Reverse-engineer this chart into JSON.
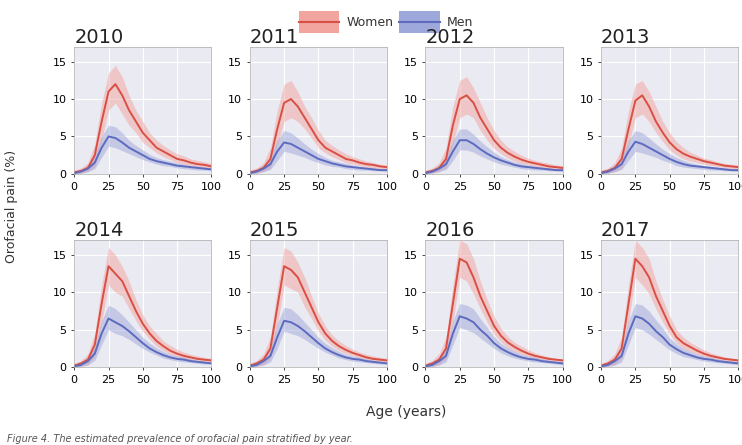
{
  "years": [
    2010,
    2011,
    2012,
    2013,
    2014,
    2015,
    2016,
    2017
  ],
  "age": [
    0,
    5,
    10,
    15,
    20,
    25,
    30,
    35,
    40,
    45,
    50,
    55,
    60,
    65,
    70,
    75,
    80,
    85,
    90,
    95,
    100
  ],
  "women_mean": {
    "2010": [
      0.2,
      0.4,
      0.8,
      2.5,
      7.0,
      11.0,
      12.0,
      10.5,
      8.5,
      7.0,
      5.5,
      4.5,
      3.5,
      3.0,
      2.5,
      2.0,
      1.8,
      1.5,
      1.3,
      1.2,
      1.0
    ],
    "2011": [
      0.2,
      0.4,
      0.8,
      2.0,
      6.0,
      9.5,
      10.0,
      9.0,
      7.5,
      6.0,
      4.5,
      3.5,
      3.0,
      2.5,
      2.0,
      1.8,
      1.5,
      1.3,
      1.2,
      1.0,
      0.9
    ],
    "2012": [
      0.2,
      0.4,
      0.8,
      2.0,
      6.5,
      10.0,
      10.5,
      9.5,
      7.5,
      6.0,
      4.5,
      3.5,
      2.8,
      2.3,
      1.9,
      1.6,
      1.4,
      1.2,
      1.0,
      0.9,
      0.8
    ],
    "2013": [
      0.2,
      0.4,
      0.8,
      2.0,
      6.0,
      9.8,
      10.5,
      9.0,
      7.0,
      5.5,
      4.2,
      3.3,
      2.7,
      2.3,
      2.0,
      1.7,
      1.5,
      1.3,
      1.1,
      1.0,
      0.9
    ],
    "2014": [
      0.2,
      0.5,
      1.0,
      3.0,
      8.5,
      13.5,
      12.5,
      11.5,
      9.5,
      7.5,
      5.8,
      4.5,
      3.5,
      2.8,
      2.2,
      1.8,
      1.5,
      1.3,
      1.1,
      1.0,
      0.9
    ],
    "2015": [
      0.2,
      0.5,
      1.0,
      2.5,
      8.0,
      13.5,
      13.0,
      12.0,
      10.0,
      8.0,
      6.0,
      4.5,
      3.5,
      2.8,
      2.3,
      1.9,
      1.6,
      1.3,
      1.1,
      1.0,
      0.9
    ],
    "2016": [
      0.2,
      0.5,
      1.0,
      2.5,
      8.5,
      14.5,
      14.0,
      12.0,
      9.5,
      7.5,
      5.5,
      4.2,
      3.3,
      2.7,
      2.2,
      1.8,
      1.5,
      1.3,
      1.1,
      1.0,
      0.9
    ],
    "2017": [
      0.2,
      0.5,
      1.0,
      2.5,
      8.5,
      14.5,
      13.5,
      12.0,
      9.5,
      7.5,
      5.5,
      4.0,
      3.2,
      2.7,
      2.2,
      1.8,
      1.5,
      1.3,
      1.1,
      1.0,
      0.9
    ]
  },
  "women_upper": {
    "2010": [
      0.5,
      0.8,
      1.5,
      4.0,
      9.5,
      13.5,
      14.5,
      13.0,
      10.5,
      8.5,
      7.0,
      5.5,
      4.5,
      3.8,
      3.2,
      2.7,
      2.4,
      2.0,
      1.8,
      1.6,
      1.4
    ],
    "2011": [
      0.5,
      0.8,
      1.5,
      3.5,
      8.5,
      12.0,
      12.5,
      11.0,
      9.0,
      7.5,
      5.8,
      4.5,
      3.8,
      3.2,
      2.7,
      2.3,
      2.0,
      1.7,
      1.5,
      1.3,
      1.2
    ],
    "2012": [
      0.5,
      0.8,
      1.5,
      3.5,
      9.0,
      12.5,
      13.0,
      11.5,
      9.5,
      7.5,
      5.8,
      4.5,
      3.6,
      3.0,
      2.5,
      2.1,
      1.8,
      1.6,
      1.4,
      1.2,
      1.1
    ],
    "2013": [
      0.5,
      0.8,
      1.5,
      3.5,
      8.5,
      12.0,
      12.5,
      11.0,
      9.0,
      7.0,
      5.5,
      4.3,
      3.5,
      2.9,
      2.5,
      2.1,
      1.9,
      1.6,
      1.4,
      1.3,
      1.2
    ],
    "2014": [
      0.5,
      0.9,
      1.8,
      4.5,
      11.0,
      16.0,
      15.0,
      13.5,
      11.5,
      9.0,
      7.0,
      5.5,
      4.5,
      3.5,
      2.9,
      2.4,
      2.0,
      1.7,
      1.5,
      1.3,
      1.2
    ],
    "2015": [
      0.5,
      0.9,
      1.8,
      4.0,
      10.5,
      16.0,
      15.5,
      14.0,
      12.0,
      9.5,
      7.2,
      5.5,
      4.3,
      3.5,
      2.9,
      2.4,
      2.0,
      1.7,
      1.5,
      1.3,
      1.2
    ],
    "2016": [
      0.5,
      0.9,
      1.8,
      4.0,
      11.0,
      17.0,
      16.5,
      14.5,
      11.5,
      9.0,
      6.8,
      5.2,
      4.1,
      3.3,
      2.8,
      2.3,
      1.9,
      1.6,
      1.4,
      1.2,
      1.1
    ],
    "2017": [
      0.5,
      0.9,
      1.8,
      4.0,
      11.0,
      17.0,
      16.0,
      14.5,
      11.5,
      9.0,
      6.8,
      5.0,
      4.0,
      3.3,
      2.8,
      2.3,
      1.9,
      1.6,
      1.4,
      1.2,
      1.1
    ]
  },
  "women_lower": {
    "2010": [
      0.0,
      0.1,
      0.3,
      1.0,
      4.5,
      8.5,
      9.5,
      8.0,
      6.5,
      5.5,
      4.2,
      3.5,
      2.8,
      2.3,
      1.9,
      1.5,
      1.3,
      1.1,
      0.9,
      0.8,
      0.7
    ],
    "2011": [
      0.0,
      0.1,
      0.3,
      0.8,
      3.8,
      7.0,
      7.5,
      7.0,
      6.0,
      4.8,
      3.5,
      2.8,
      2.3,
      1.9,
      1.5,
      1.3,
      1.1,
      0.9,
      0.8,
      0.7,
      0.6
    ],
    "2012": [
      0.0,
      0.1,
      0.3,
      0.8,
      4.0,
      7.5,
      8.0,
      7.5,
      5.8,
      4.5,
      3.4,
      2.7,
      2.1,
      1.7,
      1.4,
      1.2,
      1.0,
      0.8,
      0.7,
      0.6,
      0.5
    ],
    "2013": [
      0.0,
      0.1,
      0.3,
      0.8,
      3.8,
      7.5,
      8.0,
      7.0,
      5.5,
      4.3,
      3.2,
      2.5,
      2.0,
      1.7,
      1.5,
      1.3,
      1.1,
      1.0,
      0.8,
      0.7,
      0.6
    ],
    "2014": [
      0.0,
      0.1,
      0.3,
      1.5,
      6.0,
      11.0,
      10.0,
      9.5,
      7.8,
      6.2,
      4.8,
      3.7,
      2.8,
      2.2,
      1.7,
      1.4,
      1.1,
      0.9,
      0.8,
      0.7,
      0.6
    ],
    "2015": [
      0.0,
      0.1,
      0.3,
      1.2,
      5.5,
      11.0,
      10.5,
      10.0,
      8.0,
      6.5,
      4.8,
      3.6,
      2.8,
      2.2,
      1.8,
      1.5,
      1.2,
      1.0,
      0.8,
      0.7,
      0.6
    ],
    "2016": [
      0.0,
      0.1,
      0.3,
      1.2,
      6.0,
      12.0,
      11.5,
      9.8,
      7.8,
      6.0,
      4.4,
      3.4,
      2.6,
      2.1,
      1.7,
      1.4,
      1.2,
      1.0,
      0.8,
      0.7,
      0.6
    ],
    "2017": [
      0.0,
      0.1,
      0.3,
      1.2,
      6.0,
      12.0,
      11.0,
      9.8,
      7.8,
      6.0,
      4.4,
      3.2,
      2.5,
      2.1,
      1.7,
      1.4,
      1.2,
      1.0,
      0.8,
      0.7,
      0.6
    ]
  },
  "men_mean": {
    "2010": [
      0.1,
      0.3,
      0.7,
      1.5,
      3.5,
      5.0,
      4.8,
      4.2,
      3.5,
      3.0,
      2.5,
      2.0,
      1.7,
      1.5,
      1.3,
      1.1,
      1.0,
      0.9,
      0.8,
      0.7,
      0.6
    ],
    "2011": [
      0.1,
      0.3,
      0.7,
      1.3,
      3.0,
      4.2,
      4.0,
      3.5,
      3.0,
      2.5,
      2.0,
      1.7,
      1.4,
      1.2,
      1.0,
      0.9,
      0.8,
      0.7,
      0.6,
      0.5,
      0.5
    ],
    "2012": [
      0.1,
      0.3,
      0.7,
      1.3,
      3.0,
      4.5,
      4.5,
      4.0,
      3.3,
      2.7,
      2.2,
      1.8,
      1.5,
      1.2,
      1.0,
      0.9,
      0.8,
      0.7,
      0.6,
      0.5,
      0.5
    ],
    "2013": [
      0.1,
      0.3,
      0.7,
      1.3,
      3.0,
      4.3,
      4.0,
      3.5,
      3.0,
      2.5,
      2.0,
      1.6,
      1.3,
      1.1,
      1.0,
      0.9,
      0.8,
      0.7,
      0.6,
      0.5,
      0.5
    ],
    "2014": [
      0.1,
      0.3,
      0.8,
      1.8,
      4.5,
      6.5,
      6.0,
      5.5,
      4.8,
      4.0,
      3.2,
      2.5,
      2.0,
      1.6,
      1.3,
      1.1,
      1.0,
      0.8,
      0.7,
      0.6,
      0.5
    ],
    "2015": [
      0.1,
      0.3,
      0.8,
      1.5,
      4.0,
      6.2,
      6.0,
      5.5,
      4.8,
      4.0,
      3.2,
      2.5,
      2.0,
      1.6,
      1.3,
      1.1,
      1.0,
      0.8,
      0.7,
      0.6,
      0.5
    ],
    "2016": [
      0.1,
      0.3,
      0.8,
      1.5,
      4.5,
      6.8,
      6.5,
      6.0,
      5.0,
      4.2,
      3.2,
      2.5,
      2.0,
      1.6,
      1.3,
      1.1,
      1.0,
      0.8,
      0.7,
      0.6,
      0.5
    ],
    "2017": [
      0.1,
      0.3,
      0.8,
      1.5,
      4.5,
      6.8,
      6.5,
      5.8,
      4.8,
      4.0,
      3.0,
      2.4,
      1.9,
      1.6,
      1.3,
      1.1,
      1.0,
      0.8,
      0.7,
      0.6,
      0.5
    ]
  },
  "men_upper": {
    "2010": [
      0.3,
      0.6,
      1.2,
      2.5,
      5.0,
      6.5,
      6.3,
      5.5,
      4.5,
      3.8,
      3.2,
      2.6,
      2.2,
      1.9,
      1.7,
      1.5,
      1.3,
      1.1,
      1.0,
      0.9,
      0.8
    ],
    "2011": [
      0.3,
      0.6,
      1.2,
      2.2,
      4.5,
      5.8,
      5.5,
      4.8,
      4.0,
      3.3,
      2.7,
      2.2,
      1.8,
      1.6,
      1.4,
      1.2,
      1.0,
      0.9,
      0.8,
      0.7,
      0.6
    ],
    "2012": [
      0.3,
      0.6,
      1.2,
      2.2,
      4.5,
      6.0,
      6.0,
      5.3,
      4.4,
      3.6,
      2.9,
      2.3,
      1.9,
      1.6,
      1.4,
      1.2,
      1.0,
      0.9,
      0.8,
      0.7,
      0.6
    ],
    "2013": [
      0.3,
      0.6,
      1.2,
      2.2,
      4.5,
      5.8,
      5.5,
      4.8,
      4.0,
      3.3,
      2.7,
      2.2,
      1.8,
      1.5,
      1.3,
      1.1,
      1.0,
      0.9,
      0.8,
      0.7,
      0.6
    ],
    "2014": [
      0.3,
      0.6,
      1.4,
      2.8,
      6.2,
      8.3,
      7.8,
      7.0,
      6.0,
      5.0,
      4.0,
      3.2,
      2.6,
      2.1,
      1.7,
      1.5,
      1.3,
      1.1,
      0.9,
      0.8,
      0.7
    ],
    "2015": [
      0.3,
      0.6,
      1.4,
      2.5,
      5.8,
      8.0,
      7.8,
      7.0,
      6.0,
      5.0,
      4.0,
      3.2,
      2.6,
      2.1,
      1.7,
      1.5,
      1.3,
      1.1,
      0.9,
      0.8,
      0.7
    ],
    "2016": [
      0.3,
      0.6,
      1.4,
      2.5,
      6.2,
      8.5,
      8.3,
      7.8,
      6.5,
      5.3,
      4.1,
      3.2,
      2.6,
      2.1,
      1.7,
      1.5,
      1.3,
      1.1,
      0.9,
      0.8,
      0.7
    ],
    "2017": [
      0.3,
      0.6,
      1.4,
      2.5,
      6.2,
      8.5,
      8.3,
      7.5,
      6.3,
      5.2,
      3.9,
      3.1,
      2.5,
      2.1,
      1.7,
      1.5,
      1.3,
      1.1,
      0.9,
      0.8,
      0.7
    ]
  },
  "men_lower": {
    "2010": [
      0.0,
      0.1,
      0.3,
      0.7,
      2.2,
      3.7,
      3.5,
      3.1,
      2.7,
      2.3,
      1.9,
      1.6,
      1.3,
      1.1,
      1.0,
      0.8,
      0.7,
      0.6,
      0.5,
      0.5,
      0.4
    ],
    "2011": [
      0.0,
      0.1,
      0.3,
      0.6,
      1.8,
      3.0,
      2.8,
      2.5,
      2.2,
      1.8,
      1.5,
      1.2,
      1.0,
      0.9,
      0.7,
      0.6,
      0.5,
      0.5,
      0.4,
      0.4,
      0.3
    ],
    "2012": [
      0.0,
      0.1,
      0.3,
      0.6,
      1.8,
      3.2,
      3.2,
      2.9,
      2.4,
      2.0,
      1.6,
      1.3,
      1.1,
      0.9,
      0.7,
      0.6,
      0.5,
      0.5,
      0.4,
      0.4,
      0.3
    ],
    "2013": [
      0.0,
      0.1,
      0.3,
      0.6,
      1.8,
      3.0,
      2.8,
      2.5,
      2.2,
      1.8,
      1.5,
      1.1,
      0.9,
      0.8,
      0.7,
      0.6,
      0.5,
      0.5,
      0.4,
      0.4,
      0.3
    ],
    "2014": [
      0.0,
      0.1,
      0.3,
      0.9,
      3.0,
      5.0,
      4.5,
      4.2,
      3.7,
      3.1,
      2.5,
      2.0,
      1.6,
      1.2,
      1.0,
      0.8,
      0.7,
      0.6,
      0.5,
      0.4,
      0.4
    ],
    "2015": [
      0.0,
      0.1,
      0.3,
      0.7,
      2.5,
      4.8,
      4.5,
      4.2,
      3.7,
      3.1,
      2.5,
      2.0,
      1.6,
      1.2,
      1.0,
      0.8,
      0.7,
      0.6,
      0.5,
      0.4,
      0.4
    ],
    "2016": [
      0.0,
      0.1,
      0.3,
      0.7,
      3.0,
      5.3,
      5.0,
      4.6,
      3.9,
      3.2,
      2.5,
      1.9,
      1.5,
      1.2,
      1.0,
      0.8,
      0.7,
      0.6,
      0.5,
      0.4,
      0.3
    ],
    "2017": [
      0.0,
      0.1,
      0.3,
      0.7,
      3.0,
      5.3,
      5.0,
      4.4,
      3.7,
      3.0,
      2.3,
      1.8,
      1.4,
      1.2,
      1.0,
      0.8,
      0.7,
      0.6,
      0.5,
      0.4,
      0.3
    ]
  },
  "women_color": "#D94F43",
  "men_color": "#5C6BC0",
  "women_fill_color": "#F2A49F",
  "men_fill_color": "#9FA8DA",
  "fill_alpha": 0.5,
  "bg_color": "#EAEAF2",
  "grid_color": "#FFFFFF",
  "ylabel": "Orofacial pain (%)",
  "xlabel": "Age (years)",
  "ylim": [
    0,
    17
  ],
  "yticks": [
    0,
    5,
    10,
    15
  ],
  "xticks": [
    0,
    25,
    50,
    75,
    100
  ],
  "year_title_fontsize": 14,
  "tick_fontsize": 8,
  "label_fontsize": 9,
  "caption_fontsize": 7,
  "caption": "Figure 4. The estimated prevalence of orofacial pain stratified by year."
}
